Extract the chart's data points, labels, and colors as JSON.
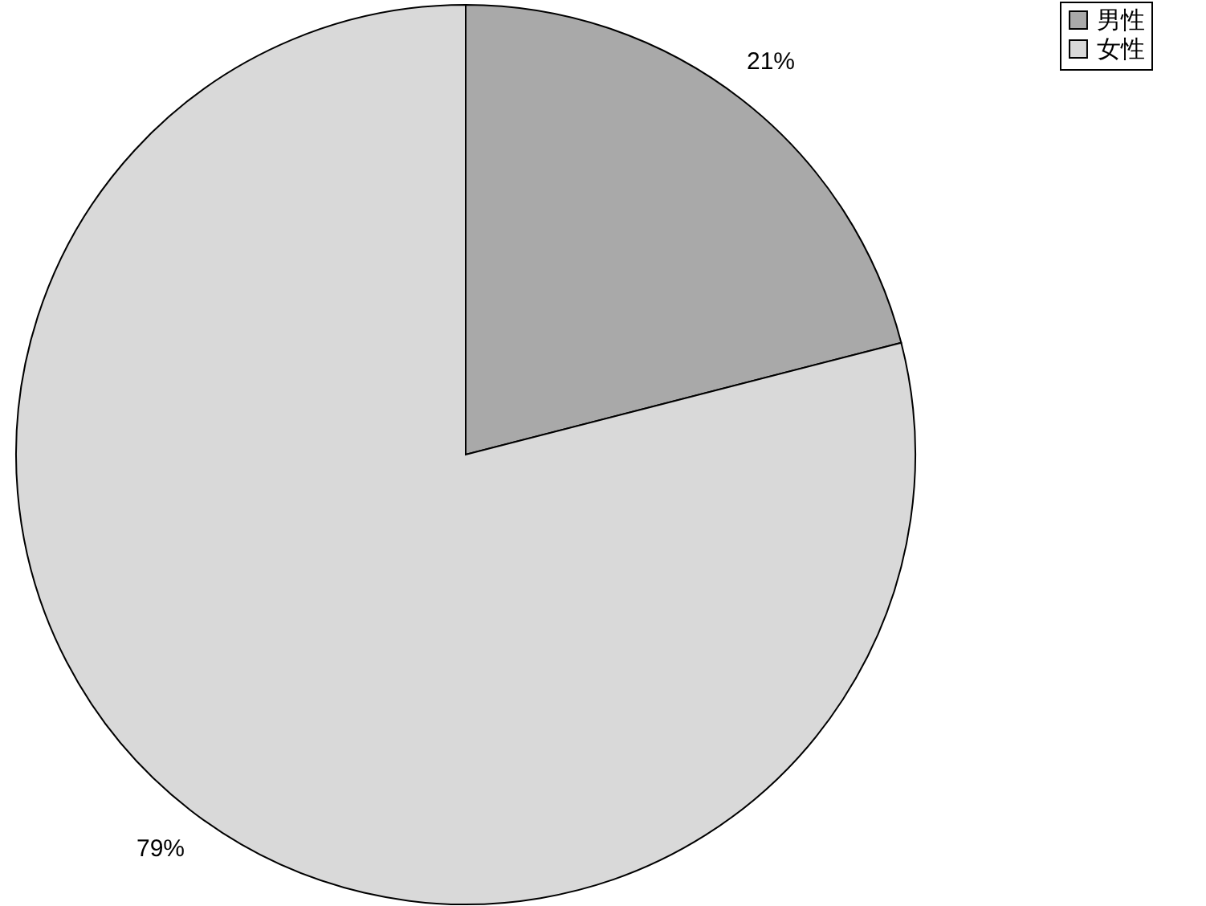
{
  "chart_data": {
    "type": "pie",
    "categories": [
      "男性",
      "女性"
    ],
    "values": [
      21,
      79
    ],
    "value_labels": [
      "21%",
      "79%"
    ],
    "colors": [
      "#a9a9a9",
      "#d9d9d9"
    ],
    "legend": "right"
  }
}
